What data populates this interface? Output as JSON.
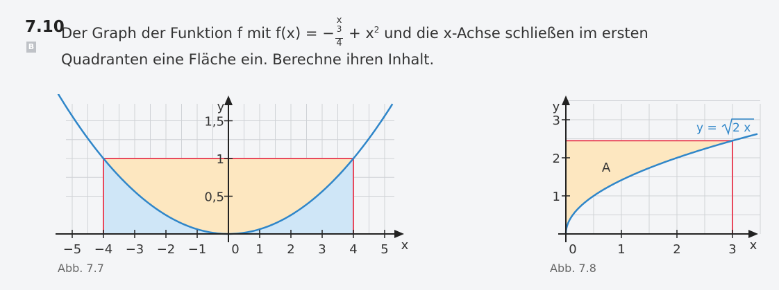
{
  "task": {
    "number": "7.10",
    "badge": "B",
    "line1_pre": "Der Graph der Funktion f mit ",
    "formula_lhs": "f(x) = −",
    "frac_num": "x",
    "frac_num_exp": "3",
    "frac_den": "4",
    "formula_rhs": " + x",
    "formula_rhs_exp": "2",
    "line1_post": " und die x-Achse schließen im ersten",
    "line2": "Quadranten eine Fläche ein. Berechne ihren Inhalt."
  },
  "figure1": {
    "caption": "Abb. 7.7",
    "x_axis_label": "x",
    "y_axis_label": "y",
    "x_ticks": [
      "−5",
      "−4",
      "−3",
      "−2",
      "−1",
      "0",
      "1",
      "2",
      "3",
      "4",
      "5"
    ],
    "y_ticks": [
      "0,5",
      "1",
      "1,5"
    ],
    "colors": {
      "curve": "#2f86c9",
      "rectangle": "#e8485c",
      "fill_inner": "#fde7c0",
      "fill_outer": "#cfe6f7",
      "grid": "#cfd2d6"
    }
  },
  "figure2": {
    "caption": "Abb. 7.8",
    "x_axis_label": "x",
    "y_axis_label": "y",
    "x_ticks": [
      "0",
      "1",
      "2",
      "3"
    ],
    "y_ticks": [
      "1",
      "2",
      "3"
    ],
    "curve_label_prefix": "y = ",
    "curve_label_radicand": "2 x",
    "area_label": "A",
    "colors": {
      "curve": "#2f86c9",
      "rectangle": "#e8485c",
      "fill": "#fde7c0",
      "grid": "#cfd2d6"
    }
  },
  "chart_data": [
    {
      "type": "area",
      "xlim": [
        -5,
        5
      ],
      "ylim": [
        0,
        1.5
      ],
      "x_label": "x",
      "y_label": "y",
      "function": "y = x²/16",
      "rectangle": {
        "x_from": -4,
        "x_to": 4,
        "y_from": 0,
        "y_to": 1
      },
      "x_ticks": [
        -5,
        -4,
        -3,
        -2,
        -1,
        0,
        1,
        2,
        3,
        4,
        5
      ],
      "y_ticks": [
        0.5,
        1,
        1.5
      ],
      "grid": true
    },
    {
      "type": "area",
      "xlim": [
        0,
        3
      ],
      "ylim": [
        0,
        3
      ],
      "x_label": "x",
      "y_label": "y",
      "function": "y = √(2x)",
      "rectangle": {
        "x_from": 0,
        "x_to": 3,
        "y_from": 0,
        "y_to": 2.449
      },
      "region_label": "A",
      "x_ticks": [
        0,
        1,
        2,
        3
      ],
      "y_ticks": [
        1,
        2,
        3
      ],
      "grid": true
    }
  ]
}
